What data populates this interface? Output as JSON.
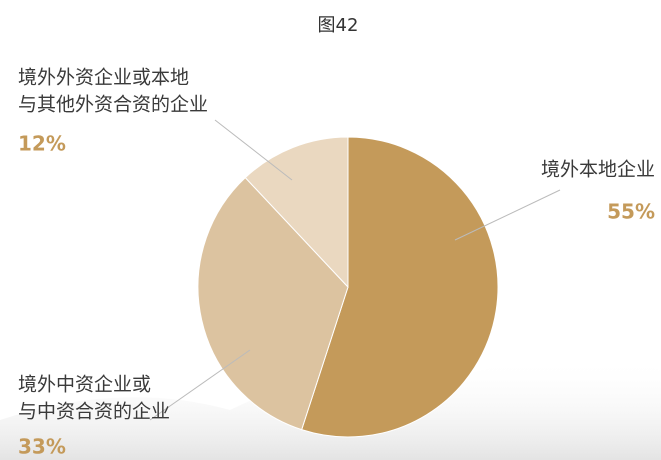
{
  "chart_data": {
    "type": "pie",
    "title": "图42",
    "categories": [
      [
        "境外本地企业"
      ],
      [
        "境外中资企业或",
        "与中资合资的企业"
      ],
      [
        "境外外资企业或本地",
        "与其他外资合资的企业"
      ]
    ],
    "values": [
      55,
      33,
      12
    ],
    "value_labels": [
      "55%",
      "33%",
      "12%"
    ],
    "colors": [
      "#c49a5a",
      "#dcc3a0",
      "#ead8c0"
    ]
  }
}
